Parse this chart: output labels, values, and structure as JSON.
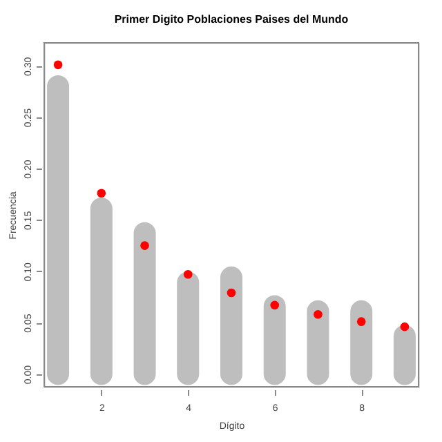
{
  "chart_data": {
    "type": "bar",
    "title": "Primer Digito Poblaciones Paises del Mundo",
    "xlabel": "Dígito",
    "ylabel": "Frecuencia",
    "x": [
      1,
      2,
      3,
      4,
      5,
      6,
      7,
      8,
      9
    ],
    "series": [
      {
        "color": "#bebebe",
        "values": [
          0.28,
          0.161,
          0.137,
          0.089,
          0.094,
          0.066,
          0.061,
          0.061,
          0.037
        ]
      },
      {
        "type": "scatter",
        "color": "#ff0000",
        "values": [
          0.301,
          0.176,
          0.125,
          0.097,
          0.079,
          0.067,
          0.058,
          0.051,
          0.046
        ]
      }
    ],
    "xlim": [
      0.68,
      9.32
    ],
    "xticks": [
      2,
      4,
      6,
      8
    ],
    "ylim": [
      -0.0124,
      0.3224
    ],
    "yticks": [
      {
        "value": 0,
        "label": "0.00"
      },
      0.05,
      {
        "value": 0.1,
        "label": "0.10"
      },
      0.15,
      {
        "value": 0.2,
        "label": "0.20"
      },
      0.25,
      {
        "value": 0.3,
        "label": "0.30"
      }
    ],
    "grid": false,
    "marker": "circle"
  }
}
